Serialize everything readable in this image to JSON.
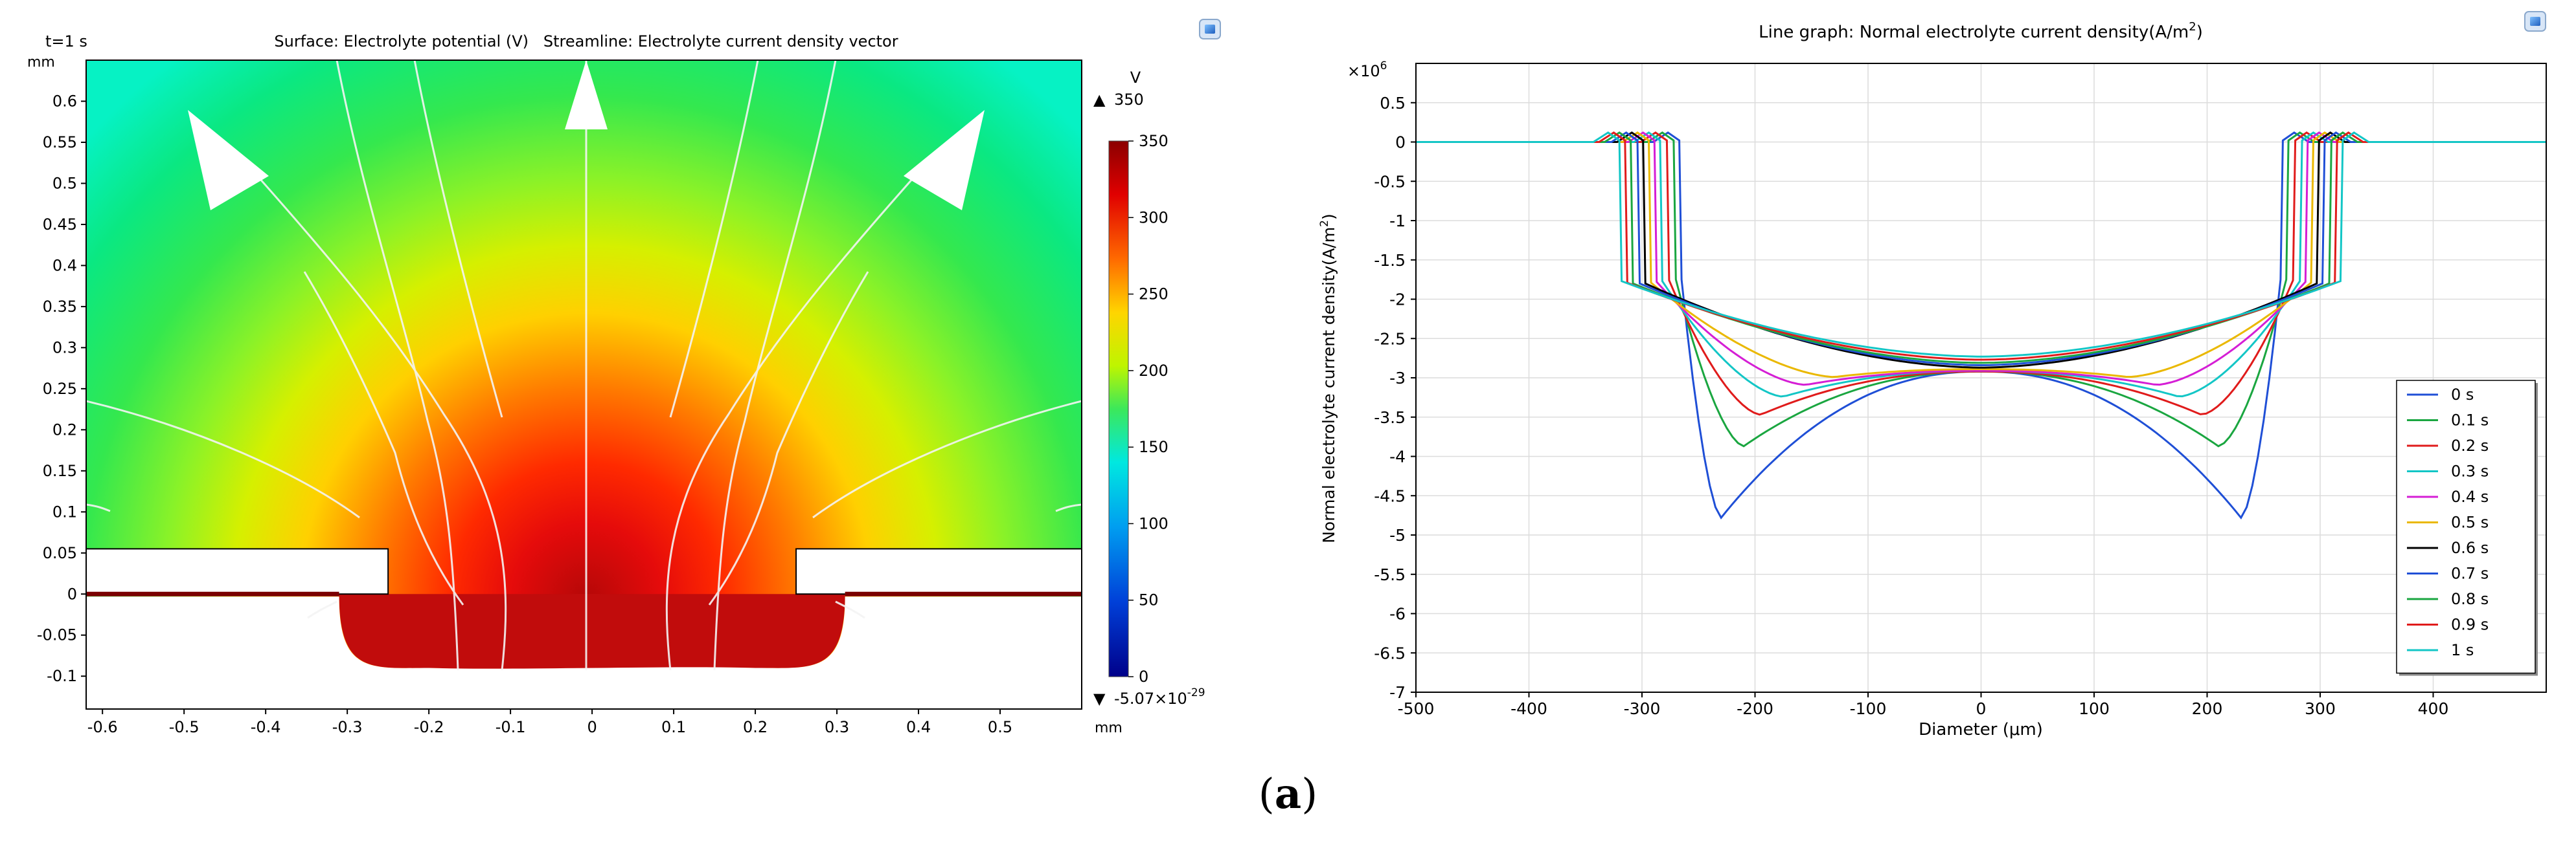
{
  "chart_data": [
    {
      "type": "heatmap",
      "time_label": "t=1 s",
      "title": "Surface: Electrolyte potential (V)   Streamline: Electrolyte current density vector",
      "xlabel": "mm",
      "ylabel": "mm",
      "xlim": [
        -0.62,
        0.6
      ],
      "ylim": [
        -0.14,
        0.65
      ],
      "x_ticks": [
        "-0.6",
        "-0.5",
        "-0.4",
        "-0.3",
        "-0.2",
        "-0.1",
        "0",
        "0.1",
        "0.2",
        "0.3",
        "0.4",
        "0.5"
      ],
      "x_tick_values": [
        -0.6,
        -0.5,
        -0.4,
        -0.3,
        -0.2,
        -0.1,
        0,
        0.1,
        0.2,
        0.3,
        0.4,
        0.5
      ],
      "y_ticks": [
        "0.6",
        "0.55",
        "0.5",
        "0.45",
        "0.4",
        "0.35",
        "0.3",
        "0.25",
        "0.2",
        "0.15",
        "0.1",
        "0.05",
        "0",
        "-0.05",
        "-0.1"
      ],
      "y_tick_values": [
        0.6,
        0.55,
        0.5,
        0.45,
        0.4,
        0.35,
        0.3,
        0.25,
        0.2,
        0.15,
        0.1,
        0.05,
        0,
        -0.05,
        -0.1
      ],
      "colorbar": {
        "unit": "V",
        "max_label": "350",
        "min_label": "-5.07×10",
        "min_exp": "-29",
        "tick_labels": [
          "350",
          "300",
          "250",
          "200",
          "150",
          "100",
          "50",
          "0"
        ],
        "tick_values": [
          350,
          300,
          250,
          200,
          150,
          100,
          50,
          0
        ],
        "range": [
          0,
          350
        ]
      },
      "mask": {
        "x_from": 0.25,
        "y_from": 0.0,
        "y_to": 0.055
      },
      "cavity": {
        "half_width": 0.31,
        "depth": -0.09
      }
    },
    {
      "type": "line",
      "title": "Line graph: Normal electrolyte current density(A/m",
      "title_sup": "2",
      "title_end": ")",
      "xlabel": "Diameter (μm)",
      "ylabel": "Normal electrolyte current density(A/m",
      "ylabel_sup": "2",
      "ylabel_end": ")",
      "y_multiplier": "×10",
      "y_multiplier_exp": "6",
      "xlim": [
        -500,
        500
      ],
      "ylim": [
        -7.0,
        1.0
      ],
      "x_ticks": [
        "-500",
        "-400",
        "-300",
        "-200",
        "-100",
        "0",
        "100",
        "200",
        "300",
        "400"
      ],
      "x_tick_values": [
        -500,
        -400,
        -300,
        -200,
        -100,
        0,
        100,
        200,
        300,
        400
      ],
      "y_ticks": [
        "0.5",
        "0",
        "-0.5",
        "-1",
        "-1.5",
        "-2",
        "-2.5",
        "-3",
        "-3.5",
        "-4",
        "-4.5",
        "-5",
        "-5.5",
        "-6",
        "-6.5",
        "-7"
      ],
      "y_tick_values": [
        0.5,
        0,
        -0.5,
        -1,
        -1.5,
        -2,
        -2.5,
        -3,
        -3.5,
        -4,
        -4.5,
        -5,
        -5.5,
        -6,
        -6.5,
        -7
      ],
      "series": [
        {
          "name": "0 s",
          "color": "#1f4fd6",
          "edge": 265,
          "corner": -1.75,
          "center": -2.92,
          "peak": -4.78,
          "peak_x": 230
        },
        {
          "name": "0.1 s",
          "color": "#1aa640",
          "edge": 270,
          "corner": -1.75,
          "center": -2.92,
          "peak": -3.87,
          "peak_x": 210
        },
        {
          "name": "0.2 s",
          "color": "#e01b1b",
          "edge": 276,
          "corner": -1.76,
          "center": -2.92,
          "peak": -3.47,
          "peak_x": 195
        },
        {
          "name": "0.3 s",
          "color": "#13c6c6",
          "edge": 282,
          "corner": -1.77,
          "center": -2.91,
          "peak": -3.24,
          "peak_x": 175
        },
        {
          "name": "0.4 s",
          "color": "#d51ed5",
          "edge": 287,
          "corner": -1.78,
          "center": -2.91,
          "peak": -3.09,
          "peak_x": 155
        },
        {
          "name": "0.5 s",
          "color": "#eab800",
          "edge": 292,
          "corner": -1.79,
          "center": -2.89,
          "peak": -2.99,
          "peak_x": 130
        },
        {
          "name": "0.6 s",
          "color": "#000000",
          "edge": 297,
          "corner": -1.8,
          "center": -2.87,
          "peak": -2.9,
          "peak_x": 100
        },
        {
          "name": "0.7 s",
          "color": "#1f4fd6",
          "edge": 302,
          "corner": -1.8,
          "center": -2.84,
          "peak": -2.85,
          "peak_x": 60
        },
        {
          "name": "0.8 s",
          "color": "#1aa640",
          "edge": 308,
          "corner": -1.8,
          "center": -2.81,
          "peak": -2.81,
          "peak_x": 0
        },
        {
          "name": "0.9 s",
          "color": "#e01b1b",
          "edge": 313,
          "corner": -1.79,
          "center": -2.77,
          "peak": -2.77,
          "peak_x": 0
        },
        {
          "name": "1 s",
          "color": "#13c6c6",
          "edge": 318,
          "corner": -1.77,
          "center": -2.73,
          "peak": -2.73,
          "peak_x": 0
        }
      ]
    }
  ],
  "caption": {
    "label": "a"
  }
}
